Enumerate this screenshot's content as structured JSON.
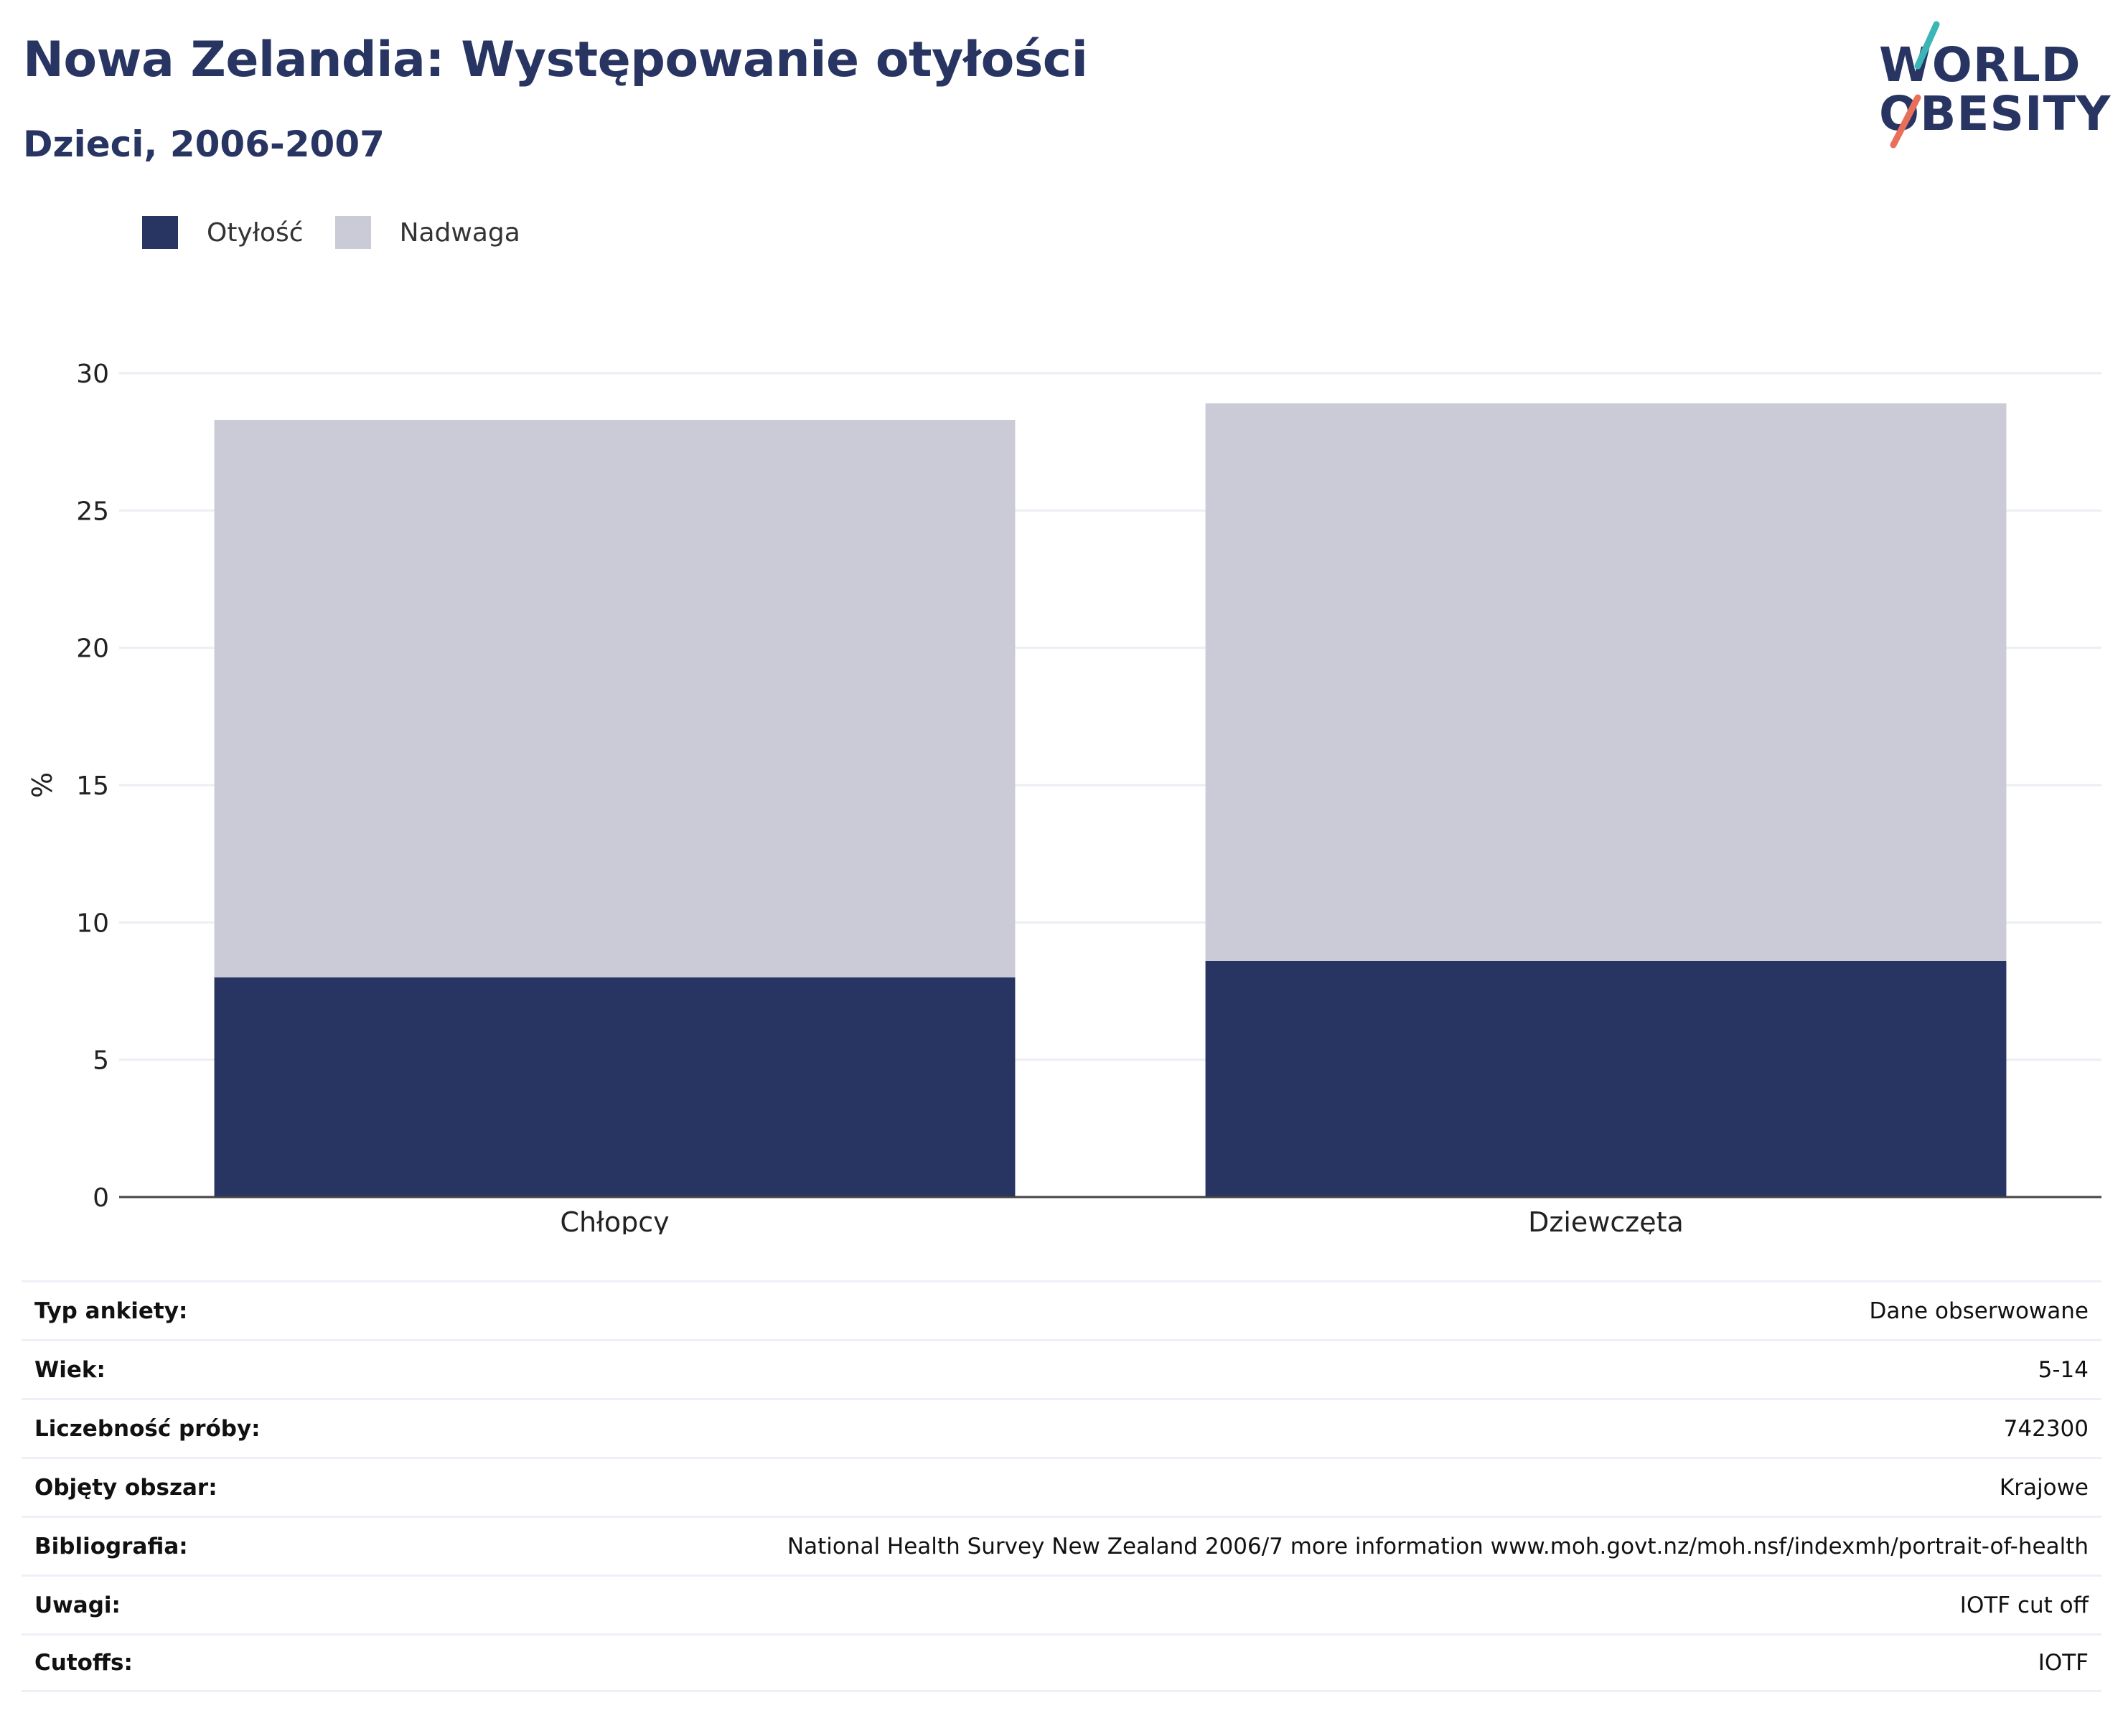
{
  "header": {
    "title": "Nowa Zelandia: Występowanie otyłości",
    "subtitle": "Dzieci, 2006-2007"
  },
  "logo": {
    "line1": "WORLD",
    "line2": "OBESITY"
  },
  "legend": [
    {
      "label": "Otyłość",
      "color": "#283562"
    },
    {
      "label": "Nadwaga",
      "color": "#cacbd6"
    }
  ],
  "chart_data": {
    "type": "bar",
    "stacked": true,
    "categories": [
      "Chłopcy",
      "Dziewczęta"
    ],
    "series": [
      {
        "name": "Otyłość",
        "values": [
          8.0,
          8.6
        ],
        "color": "#283562"
      },
      {
        "name": "Nadwaga",
        "values": [
          20.3,
          20.3
        ],
        "color": "#cacbd6"
      }
    ],
    "ylabel": "%",
    "ylim": [
      0,
      30
    ],
    "yticks": [
      0,
      5,
      10,
      15,
      20,
      25,
      30
    ],
    "grid": true,
    "legend_position": "top-left"
  },
  "meta": [
    {
      "key": "Typ ankiety:",
      "value": "Dane obserwowane"
    },
    {
      "key": "Wiek:",
      "value": "5-14"
    },
    {
      "key": "Liczebność próby:",
      "value": "742300"
    },
    {
      "key": "Objęty obszar:",
      "value": "Krajowe"
    },
    {
      "key": "Bibliografia:",
      "value": "National Health Survey New Zealand 2006/7 more information www.moh.govt.nz/moh.nsf/indexmh/portrait-of-health"
    },
    {
      "key": "Uwagi:",
      "value": "IOTF cut off"
    },
    {
      "key": "Cutoffs:",
      "value": "IOTF"
    }
  ]
}
